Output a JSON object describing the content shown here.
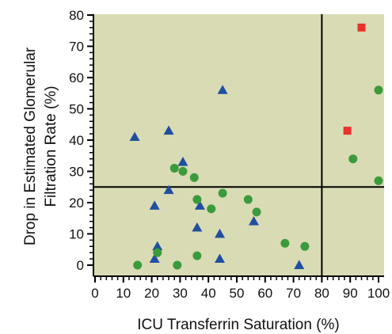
{
  "chart_data": {
    "type": "scatter",
    "title": "",
    "xlabel": "ICU Transferrin Saturation (%)",
    "ylabel_lines": [
      "Drop in Estimated Glomerular",
      "Filtration Rate (%)"
    ],
    "xlim": [
      0,
      100
    ],
    "ylim": [
      0,
      80
    ],
    "x_ticks": [
      0,
      10,
      20,
      30,
      40,
      50,
      60,
      70,
      80,
      90,
      100
    ],
    "y_ticks": [
      0,
      10,
      20,
      30,
      40,
      50,
      60,
      70,
      80
    ],
    "grid": false,
    "legend": "none",
    "reference_lines": {
      "x": 80,
      "y": 25
    },
    "colors": {
      "plot_background": "#d9dbb4",
      "triangle_series": "#1f4f9f",
      "circle_series": "#3c9a3c",
      "square_series": "#e8322d",
      "axis": "#000000"
    },
    "series": [
      {
        "marker": "triangle",
        "color": "#1f4f9f",
        "points": [
          {
            "x": 14,
            "y": 41
          },
          {
            "x": 26,
            "y": 43
          },
          {
            "x": 45,
            "y": 56
          },
          {
            "x": 31,
            "y": 33
          },
          {
            "x": 26,
            "y": 24
          },
          {
            "x": 21,
            "y": 19
          },
          {
            "x": 37,
            "y": 19
          },
          {
            "x": 36,
            "y": 12
          },
          {
            "x": 56,
            "y": 14
          },
          {
            "x": 44,
            "y": 10
          },
          {
            "x": 22,
            "y": 6
          },
          {
            "x": 21,
            "y": 2
          },
          {
            "x": 44,
            "y": 2
          },
          {
            "x": 72,
            "y": 0
          }
        ]
      },
      {
        "marker": "circle",
        "color": "#3c9a3c",
        "points": [
          {
            "x": 28,
            "y": 31
          },
          {
            "x": 31,
            "y": 30
          },
          {
            "x": 35,
            "y": 28
          },
          {
            "x": 45,
            "y": 23
          },
          {
            "x": 36,
            "y": 21
          },
          {
            "x": 54,
            "y": 21
          },
          {
            "x": 41,
            "y": 18
          },
          {
            "x": 57,
            "y": 17
          },
          {
            "x": 22,
            "y": 4
          },
          {
            "x": 15,
            "y": 0
          },
          {
            "x": 29,
            "y": 0
          },
          {
            "x": 36,
            "y": 3
          },
          {
            "x": 67,
            "y": 7
          },
          {
            "x": 74,
            "y": 6
          },
          {
            "x": 100,
            "y": 56
          },
          {
            "x": 91,
            "y": 34
          },
          {
            "x": 100,
            "y": 27
          }
        ]
      },
      {
        "marker": "square",
        "color": "#e8322d",
        "points": [
          {
            "x": 94,
            "y": 76
          },
          {
            "x": 89,
            "y": 43
          }
        ]
      }
    ]
  }
}
